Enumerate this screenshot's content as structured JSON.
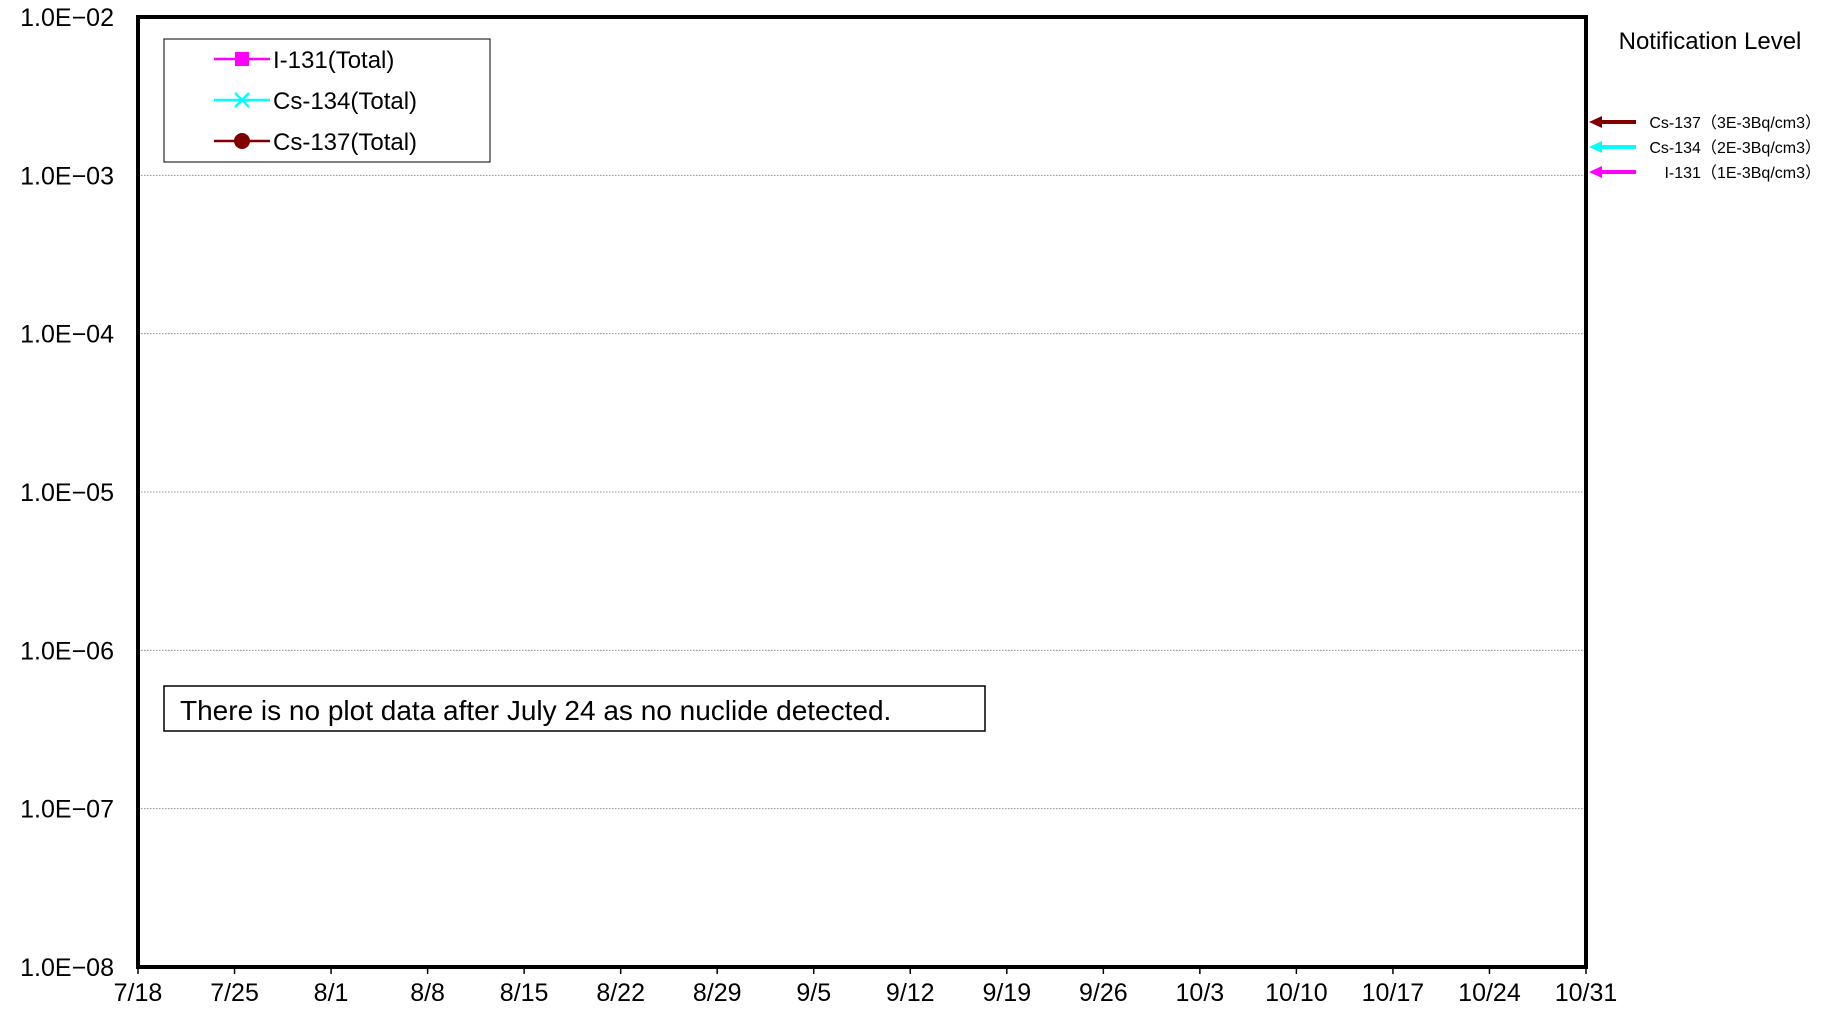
{
  "chart_data": {
    "type": "line",
    "title": "",
    "xlabel": "",
    "ylabel": "",
    "y_scale": "log",
    "ylim": [
      1e-08,
      0.01
    ],
    "y_ticks": [
      1e-08,
      1e-07,
      1e-06,
      1e-05,
      0.0001,
      0.001,
      0.01
    ],
    "y_tick_labels": [
      "1.0E−08",
      "1.0E−07",
      "1.0E−06",
      "1.0E−05",
      "1.0E−04",
      "1.0E−03",
      "1.0E−02"
    ],
    "x_tick_labels": [
      "7/18",
      "7/25",
      "8/1",
      "8/8",
      "8/15",
      "8/22",
      "8/29",
      "9/5",
      "9/12",
      "9/19",
      "9/26",
      "10/3",
      "10/10",
      "10/17",
      "10/24",
      "10/31"
    ],
    "grid": true,
    "legend_position": "top-left",
    "series": [
      {
        "name": "I-131(Total)",
        "color": "#ff00ff",
        "marker": "square",
        "values": []
      },
      {
        "name": "Cs-134(Total)",
        "color": "#00ffff",
        "marker": "x",
        "values": []
      },
      {
        "name": "Cs-137(Total)",
        "color": "#800000",
        "marker": "circle",
        "values": []
      }
    ],
    "annotation": "There is no plot data after July 24 as no nuclide detected.",
    "notification": {
      "title": "Notification Level",
      "levels": [
        {
          "label": "Cs-137（3E-3Bq/cm3）",
          "value": 0.003,
          "color": "#800000"
        },
        {
          "label": "Cs-134（2E-3Bq/cm3）",
          "value": 0.002,
          "color": "#00ffff"
        },
        {
          "label": "I-131（1E-3Bq/cm3）",
          "value": 0.001,
          "color": "#ff00ff"
        }
      ]
    }
  }
}
